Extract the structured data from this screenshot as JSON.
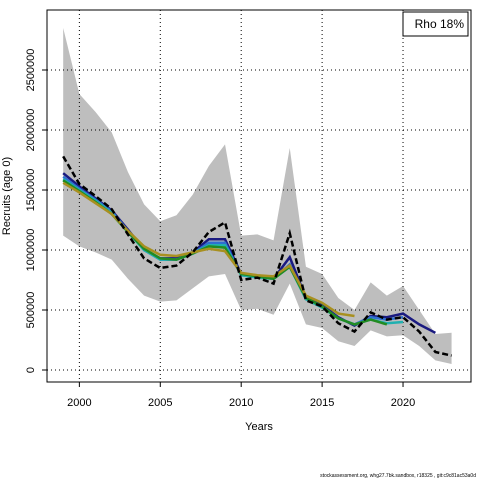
{
  "chart_data": {
    "type": "line",
    "annotation": "Rho 18%",
    "x_label": "Years",
    "y_label": "Recruits (age 0)",
    "footer": "stockassessment.org, whg27.7bk.sandbox, r18325 , git:c9c81ac53a0d",
    "x": [
      1999,
      2000,
      2001,
      2002,
      2003,
      2004,
      2005,
      2006,
      2007,
      2008,
      2009,
      2010,
      2011,
      2012,
      2013,
      2014,
      2015,
      2016,
      2017,
      2018,
      2019,
      2020,
      2021,
      2022,
      2023
    ],
    "band": {
      "color": "#bebebe",
      "upper": [
        2850000,
        2300000,
        2150000,
        1980000,
        1650000,
        1380000,
        1240000,
        1290000,
        1460000,
        1700000,
        1880000,
        1120000,
        1130000,
        1080000,
        1850000,
        860000,
        800000,
        600000,
        500000,
        730000,
        620000,
        700000,
        500000,
        300000,
        310000
      ],
      "lower": [
        1120000,
        1030000,
        980000,
        920000,
        760000,
        620000,
        570000,
        580000,
        680000,
        780000,
        800000,
        500000,
        510000,
        460000,
        720000,
        380000,
        350000,
        240000,
        200000,
        330000,
        280000,
        290000,
        200000,
        80000,
        50000
      ]
    },
    "series": [
      {
        "color": "#1a1a80",
        "values": [
          1640000,
          1530000,
          1430000,
          1330000,
          1170000,
          1000000,
          930000,
          930000,
          980000,
          1090000,
          1090000,
          800000,
          780000,
          760000,
          940000,
          600000,
          540000,
          440000,
          370000,
          450000,
          440000,
          470000,
          380000,
          310000,
          null
        ]
      },
      {
        "color": "#2f6fd0",
        "values": [
          1610000,
          1510000,
          1420000,
          1320000,
          1160000,
          1000000,
          920000,
          920000,
          970000,
          1060000,
          1060000,
          790000,
          780000,
          760000,
          880000,
          590000,
          530000,
          430000,
          380000,
          440000,
          420000,
          440000,
          null,
          null,
          null
        ]
      },
      {
        "color": "#20b0b0",
        "values": [
          1590000,
          1500000,
          1410000,
          1310000,
          1150000,
          1000000,
          920000,
          920000,
          970000,
          1040000,
          1040000,
          790000,
          770000,
          760000,
          860000,
          590000,
          520000,
          430000,
          380000,
          420000,
          390000,
          400000,
          null,
          null,
          null
        ]
      },
      {
        "color": "#228b22",
        "values": [
          1580000,
          1490000,
          1400000,
          1300000,
          1150000,
          1010000,
          930000,
          920000,
          970000,
          1030000,
          1020000,
          800000,
          780000,
          760000,
          860000,
          600000,
          530000,
          430000,
          380000,
          420000,
          380000,
          null,
          null,
          null,
          null
        ]
      },
      {
        "color": "#a89020",
        "values": [
          1560000,
          1480000,
          1390000,
          1300000,
          1160000,
          1030000,
          960000,
          950000,
          980000,
          1010000,
          990000,
          810000,
          790000,
          780000,
          870000,
          620000,
          560000,
          470000,
          450000,
          null,
          null,
          null,
          null,
          null,
          null
        ]
      },
      {
        "color": "#000000",
        "dashed": true,
        "values": [
          1780000,
          1550000,
          1450000,
          1340000,
          1130000,
          930000,
          850000,
          870000,
          980000,
          1150000,
          1230000,
          750000,
          770000,
          720000,
          1140000,
          580000,
          530000,
          390000,
          320000,
          480000,
          420000,
          440000,
          320000,
          150000,
          120000
        ]
      }
    ],
    "xlim": [
      1998,
      2024.2
    ],
    "ylim": [
      -100000,
      3000000
    ],
    "xticks": [
      2000,
      2005,
      2010,
      2015,
      2020
    ],
    "yticks": [
      0,
      500000,
      1000000,
      1500000,
      2000000,
      2500000
    ],
    "grid": true
  }
}
